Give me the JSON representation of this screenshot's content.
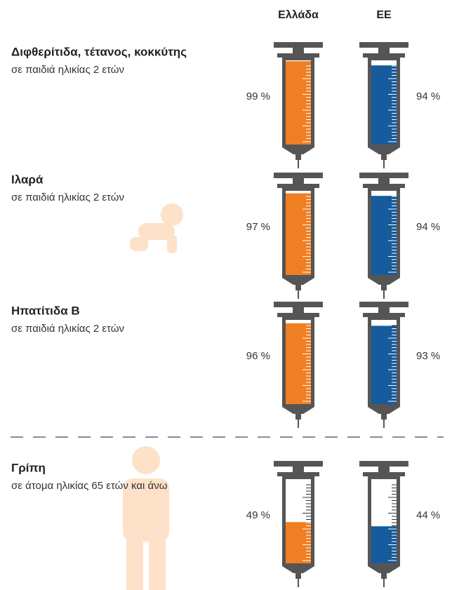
{
  "chart_data": {
    "type": "syringe",
    "categories": [
      "Διφθερίτιδα, τέτανος, κοκκύτης",
      "Ιλαρά",
      "Ηπατίτιδα Β",
      "Γρίπη"
    ],
    "subtitles": [
      "σε παιδιά ηλικίας 2 ετών",
      "σε παιδιά ηλικίας 2 ετών",
      "σε παιδιά ηλικίας 2 ετών",
      "σε άτομα ηλικίας 65 ετών και άνω"
    ],
    "series": [
      {
        "name": "Ελλάδα",
        "color": "#f07f23",
        "values": [
          99,
          97,
          96,
          49
        ],
        "value_labels": [
          "99 %",
          "97 %",
          "96 %",
          "49 %"
        ]
      },
      {
        "name": "ΕΕ",
        "color": "#175b9c",
        "values": [
          94,
          94,
          93,
          44
        ],
        "value_labels": [
          "94 %",
          "94 %",
          "93 %",
          "44 %"
        ]
      }
    ],
    "ylim": [
      0,
      100
    ]
  }
}
